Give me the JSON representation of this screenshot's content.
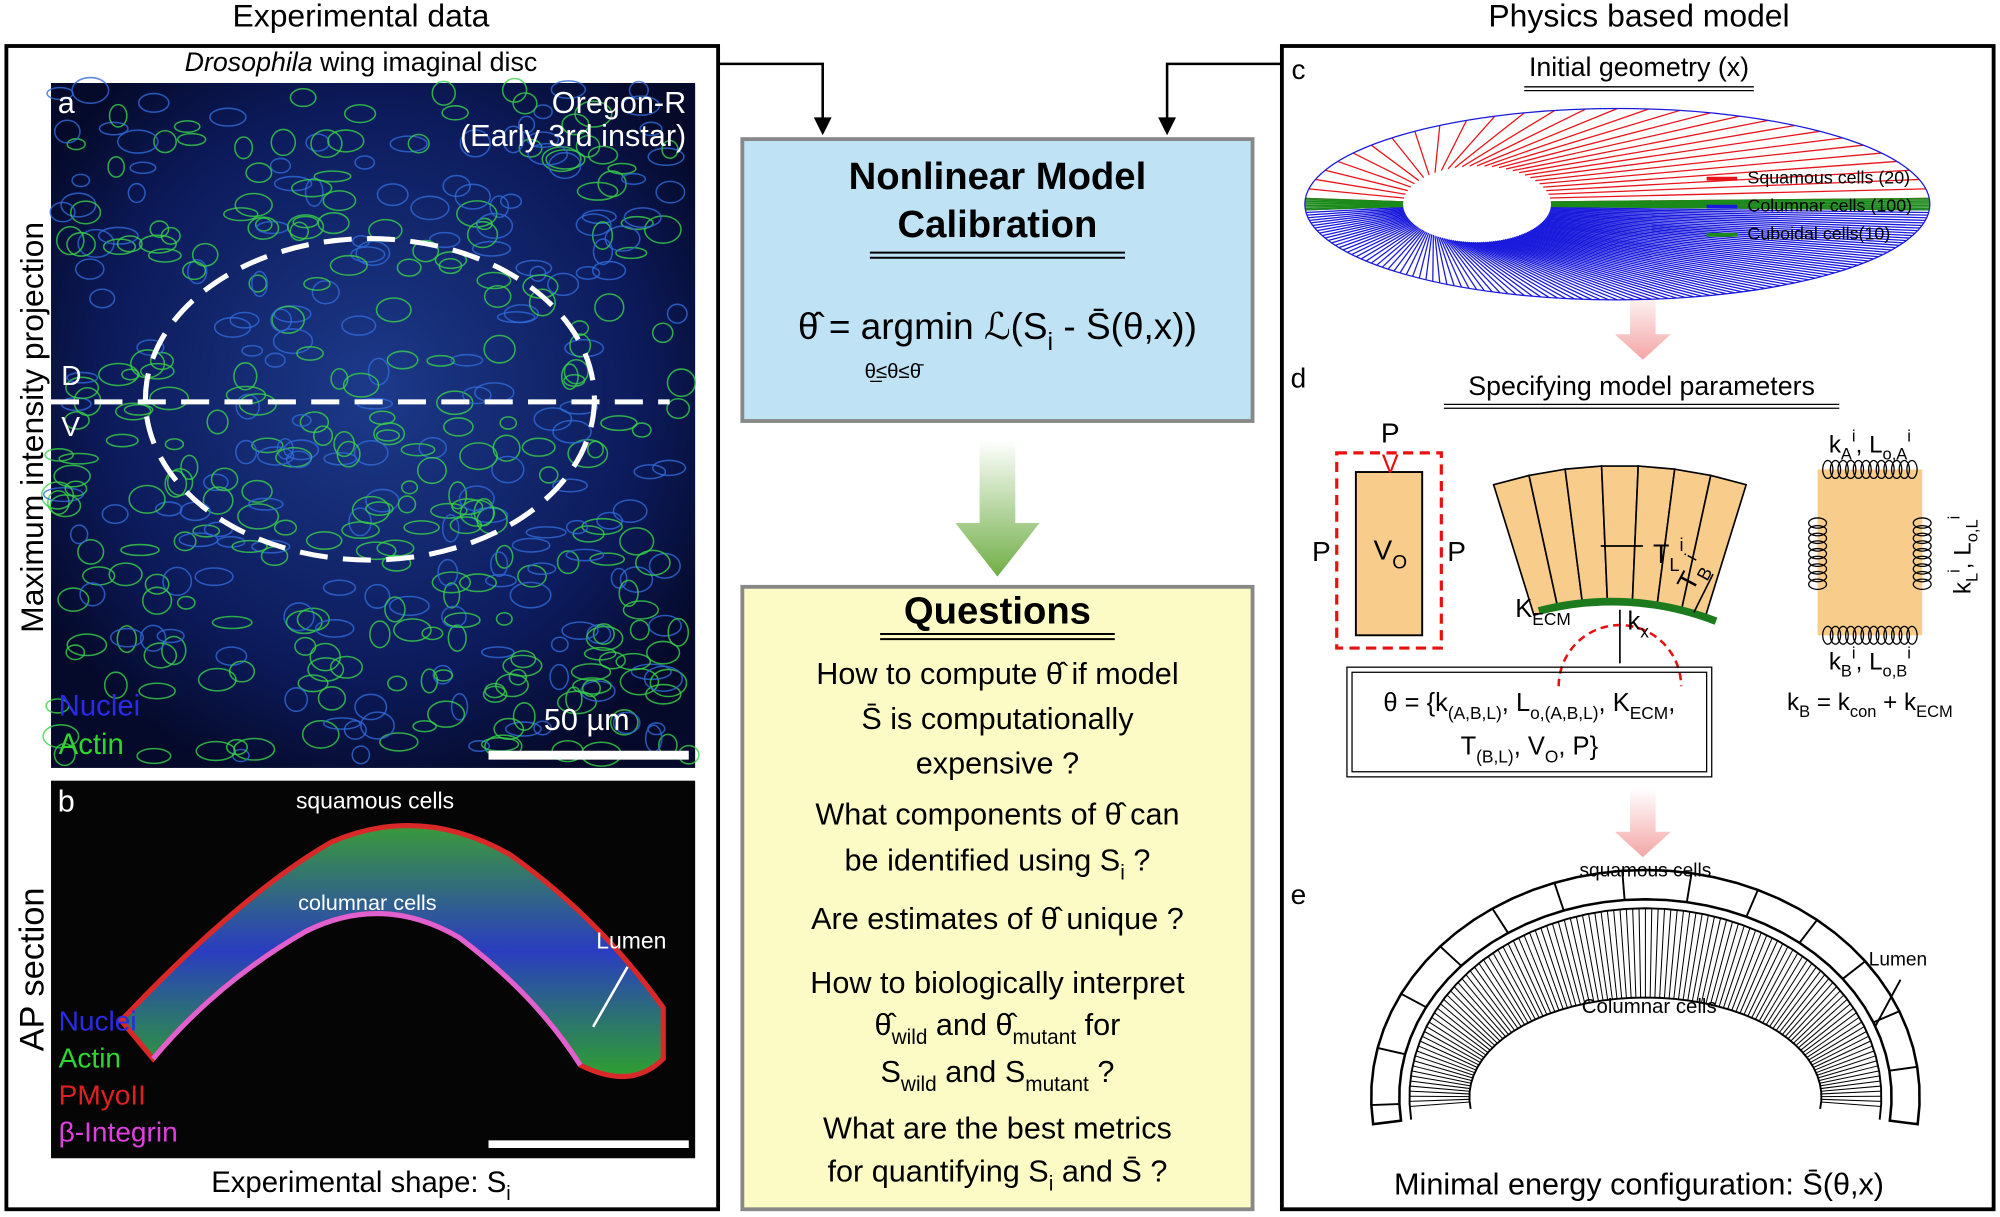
{
  "left": {
    "title": "Experimental data",
    "subtitle": [
      {
        "text": "Drosophila",
        "style": "italic"
      },
      {
        "text": " wing imaginal disc"
      }
    ],
    "panel_a": {
      "label": "a",
      "strain": "Oregon-R",
      "stage": "(Early 3rd instar)",
      "side_label": "Maximum intensity projection",
      "dorsal": "D",
      "ventral": "V",
      "legend": [
        "Nuclei",
        "Actin"
      ],
      "scale_bar": "50 µm"
    },
    "panel_b": {
      "label": "b",
      "side_label": "AP section",
      "top_label": "squamous cells",
      "middle_label": "columnar cells",
      "lumen": "Lumen",
      "legend": [
        "Nuclei",
        "Actin",
        "PMyoII",
        "β-Integrin"
      ]
    },
    "caption": [
      {
        "text": "Experimental shape: S"
      },
      {
        "text": "i",
        "style": "sub"
      }
    ]
  },
  "center": {
    "calibration_title": [
      "Nonlinear Model",
      "Calibration"
    ],
    "equation": [
      {
        "text": "θ̂ = argmin ℒ(S"
      },
      {
        "text": "i",
        "style": "sub"
      },
      {
        "text": " - S̄(θ,x))"
      }
    ],
    "constraint": "θ̲≤θ≤θ̄",
    "questions_title": "Questions",
    "questions": [
      [
        "How to compute θ̂ if model",
        "S̄ is computationally",
        "expensive ?"
      ],
      [
        "What components of θ̂ can",
        [
          {
            "text": "be identified using S"
          },
          {
            "text": "i",
            "style": "sub"
          },
          {
            "text": " ?"
          }
        ]
      ],
      [
        "Are estimates of θ̂ unique ?"
      ],
      [
        "How to biologically interpret",
        [
          {
            "text": "θ̂"
          },
          {
            "text": "wild",
            "style": "sub"
          },
          {
            "text": " and θ̂"
          },
          {
            "text": "mutant",
            "style": "sub"
          },
          {
            "text": " for"
          }
        ],
        [
          {
            "text": "S"
          },
          {
            "text": "wild",
            "style": "sub"
          },
          {
            "text": " and S"
          },
          {
            "text": "mutant",
            "style": "sub"
          },
          {
            "text": " ?"
          }
        ]
      ],
      [
        "What are the best metrics",
        [
          {
            "text": "for  quantifying S"
          },
          {
            "text": "i",
            "style": "sub"
          },
          {
            "text": " and S̄ ?"
          }
        ]
      ]
    ]
  },
  "right": {
    "title": "Physics based model",
    "panel_c": {
      "label": "c",
      "heading": "Initial geometry (x)",
      "legend": [
        {
          "name": "Squamous cells (20)",
          "color": "#e8141b"
        },
        {
          "name": "Columnar cells (100)",
          "color": "#1a1adc"
        },
        {
          "name": "Cuboidal cells(10)",
          "color": "#1b8a1b"
        }
      ]
    },
    "panel_d": {
      "label": "d",
      "heading": "Specifying model parameters",
      "p_top": "P",
      "v_mark": "V",
      "p_left": "P",
      "p_right": "P",
      "volume": [
        {
          "text": "V"
        },
        {
          "text": "O",
          "style": "sub"
        }
      ],
      "tension_l": [
        {
          "text": "T"
        },
        {
          "text": "L",
          "style": "sub"
        },
        {
          "text": "i",
          "style": "sup"
        }
      ],
      "tension_b": [
        {
          "text": "T"
        },
        {
          "text": "B",
          "style": "sub"
        },
        {
          "text": "i",
          "style": "sup"
        }
      ],
      "k_ecm": [
        {
          "text": "K"
        },
        {
          "text": "ECM",
          "style": "sub"
        }
      ],
      "k_x": [
        {
          "text": "k"
        },
        {
          "text": "x",
          "style": "sub"
        }
      ],
      "spring_a": [
        {
          "text": "k"
        },
        {
          "text": "A",
          "style": "sub"
        },
        {
          "text": "i",
          "style": "sup"
        },
        {
          "text": ", L"
        },
        {
          "text": "o,A",
          "style": "sub"
        },
        {
          "text": "i",
          "style": "sup"
        }
      ],
      "spring_l": [
        {
          "text": "k"
        },
        {
          "text": "L",
          "style": "sub"
        },
        {
          "text": "i",
          "style": "sup"
        },
        {
          "text": ", L"
        },
        {
          "text": "o,L",
          "style": "sub"
        },
        {
          "text": "i",
          "style": "sup"
        }
      ],
      "spring_b": [
        {
          "text": "k"
        },
        {
          "text": "B",
          "style": "sub"
        },
        {
          "text": "i",
          "style": "sup"
        },
        {
          "text": ", L"
        },
        {
          "text": "o,B",
          "style": "sub"
        },
        {
          "text": "i",
          "style": "sup"
        }
      ],
      "kb_equation": [
        {
          "text": "k"
        },
        {
          "text": "B",
          "style": "sub"
        },
        {
          "text": " = k"
        },
        {
          "text": "con",
          "style": "sub"
        },
        {
          "text": " + k"
        },
        {
          "text": "ECM",
          "style": "sub"
        }
      ],
      "theta_set": [
        [
          {
            "text": "θ = {k"
          },
          {
            "text": "(A,B,L)",
            "style": "sub"
          },
          {
            "text": ", L"
          },
          {
            "text": "o,(A,B,L)",
            "style": "sub"
          },
          {
            "text": ", K"
          },
          {
            "text": "ECM",
            "style": "sub"
          },
          {
            "text": ","
          }
        ],
        [
          {
            "text": "T"
          },
          {
            "text": "(B,L)",
            "style": "sub"
          },
          {
            "text": ", V"
          },
          {
            "text": "O",
            "style": "sub"
          },
          {
            "text": ", P}"
          }
        ]
      ]
    },
    "panel_e": {
      "label": "e",
      "top_label": "squamous cells",
      "lumen": "Lumen",
      "middle_label": "Columnar cells",
      "caption": "Minimal energy configuration: S̄(θ,x)"
    }
  }
}
